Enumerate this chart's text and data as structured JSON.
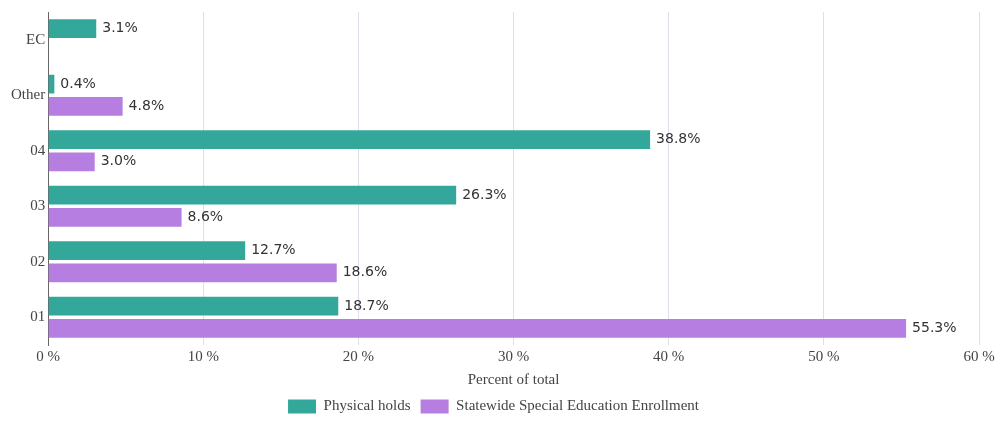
{
  "chart_data": {
    "type": "bar",
    "orientation": "horizontal",
    "xlabel": "Percent of total",
    "categories": [
      "EC",
      "Other",
      "04",
      "03",
      "02",
      "01"
    ],
    "series": [
      {
        "name": "Physical holds",
        "color": "#33a89a",
        "values": [
          3.1,
          0.4,
          38.8,
          26.3,
          12.7,
          18.7
        ],
        "value_labels": [
          "3.1%",
          "0.4%",
          "38.8%",
          "26.3%",
          "12.7%",
          "18.7%"
        ]
      },
      {
        "name": "Statewide Special Education Enrollment",
        "color": "#b57ee0",
        "values": [
          null,
          4.8,
          3.0,
          8.6,
          18.6,
          55.3
        ],
        "value_labels": [
          null,
          "4.8%",
          "3.0%",
          "8.6%",
          "18.6%",
          "55.3%"
        ]
      }
    ],
    "xlim": [
      0,
      60
    ],
    "xticks": [
      {
        "value": 0,
        "label": "0 %"
      },
      {
        "value": 10,
        "label": "10 %"
      },
      {
        "value": 20,
        "label": "20 %"
      },
      {
        "value": 30,
        "label": "30 %"
      },
      {
        "value": 40,
        "label": "40 %"
      },
      {
        "value": 50,
        "label": "50 %"
      },
      {
        "value": 60,
        "label": "60 %"
      }
    ],
    "grid": "x",
    "legend": "bottom"
  }
}
